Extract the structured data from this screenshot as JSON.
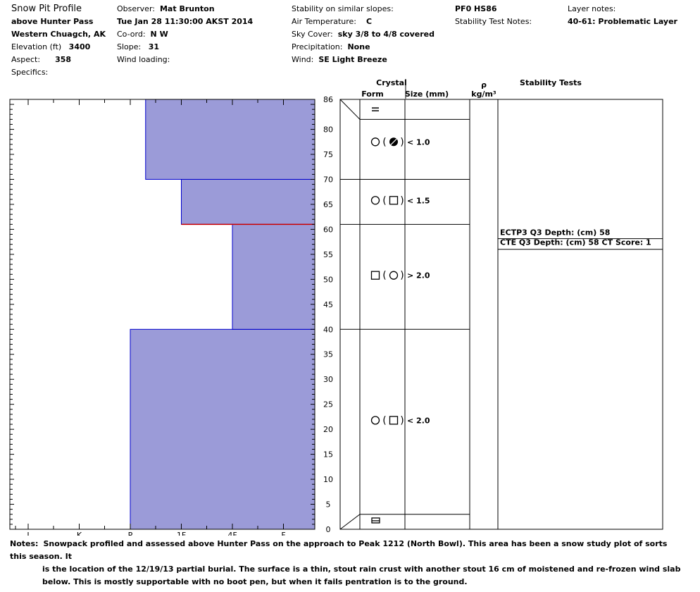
{
  "header": {
    "title": "Snow Pit Profile",
    "location": "above Hunter Pass",
    "range": "Western Chuagch, AK",
    "elevation_label": "Elevation (ft)",
    "elevation": "3400",
    "aspect_label": "Aspect:",
    "aspect": "358",
    "specifics_label": "Specifics:",
    "observer_label": "Observer:",
    "observer": "Mat Brunton",
    "datetime": "Tue Jan 28 11:30:00 AKST 2014",
    "coord_label": "Co-ord:",
    "coord": "N  W",
    "slope_label": "Slope:",
    "slope": "31",
    "wind_loading_label": "Wind loading:",
    "stability_label": "Stability on similar slopes:",
    "air_temp_label": "Air Temperature:",
    "air_temp": "C",
    "sky_label": "Sky Cover:",
    "sky": "sky 3/8 to 4/8 covered",
    "precip_label": "Precipitation:",
    "precip": "None",
    "wind_label": "Wind:",
    "wind": "SE Light Breeze",
    "pf": "PF0 HS86",
    "stability_notes_label": "Stability Test Notes:",
    "layer_notes_label": "Layer notes:",
    "layer_notes": "40-61: Problematic Layer"
  },
  "columns": {
    "crystal": "Crystal",
    "form": "Form",
    "size": "Size (mm)",
    "rho": "ρ",
    "density_unit": "kg/m³",
    "stability": "Stability Tests"
  },
  "chart_data": {
    "type": "bar",
    "hand_hardness_scale": [
      "I",
      "K",
      "P",
      "1F",
      "4F",
      "F"
    ],
    "hardness_axis_order": "left-to-right: I, K, P, 1F, 4F, F",
    "height_axis": {
      "label": "",
      "ylim": [
        0,
        86
      ],
      "ticks": [
        0,
        5,
        10,
        15,
        20,
        25,
        30,
        35,
        40,
        45,
        50,
        55,
        60,
        65,
        70,
        75,
        80,
        86
      ]
    },
    "layers": [
      {
        "bottom": 0,
        "top": 40,
        "hardness": "P+",
        "hardness_index": 2.0,
        "form": "round(square)",
        "size": "< 2.0"
      },
      {
        "bottom": 40,
        "top": 61,
        "hardness": "4F",
        "hardness_index": 4.0,
        "form": "square(round)",
        "size": "> 2.0"
      },
      {
        "bottom": 61,
        "top": 70,
        "hardness": "1F-",
        "hardness_index": 3.0,
        "form": "round(square)",
        "size": "< 1.5"
      },
      {
        "bottom": 70,
        "top": 86,
        "hardness": "P-",
        "hardness_index": 2.3,
        "form": "round(round-square)",
        "size": "< 1.0"
      }
    ],
    "crust_layers": [
      {
        "bottom": 0,
        "top": 3,
        "form": "crust-symbol"
      },
      {
        "bottom": 82,
        "top": 86,
        "form": "equals-symbol"
      }
    ],
    "problem_interface": 61,
    "stability_tests": [
      {
        "text": "ECTP3 Q3 Depth: (cm) 58"
      },
      {
        "text": "CTE Q3 Depth: (cm) 58 CT Score: 1"
      }
    ],
    "colors": {
      "fill": "#9b9bd8",
      "edge": "#0000cc",
      "problem": "#cc0000"
    },
    "grid": false
  },
  "notes": {
    "label": "Notes:",
    "line1": "Snowpack profiled and assessed above Hunter Pass on the approach to Peak 1212 (North Bowl).  This area has been a snow study plot of sorts this season.  It",
    "line2": "is the location of the 12/19/13 partial burial.  The surface is a thin, stout rain crust with another stout 16 cm of moistened and re-frozen wind slab",
    "line3": "below.  This is mostly supportable with no boot pen, but when it fails pentration is to the ground."
  }
}
